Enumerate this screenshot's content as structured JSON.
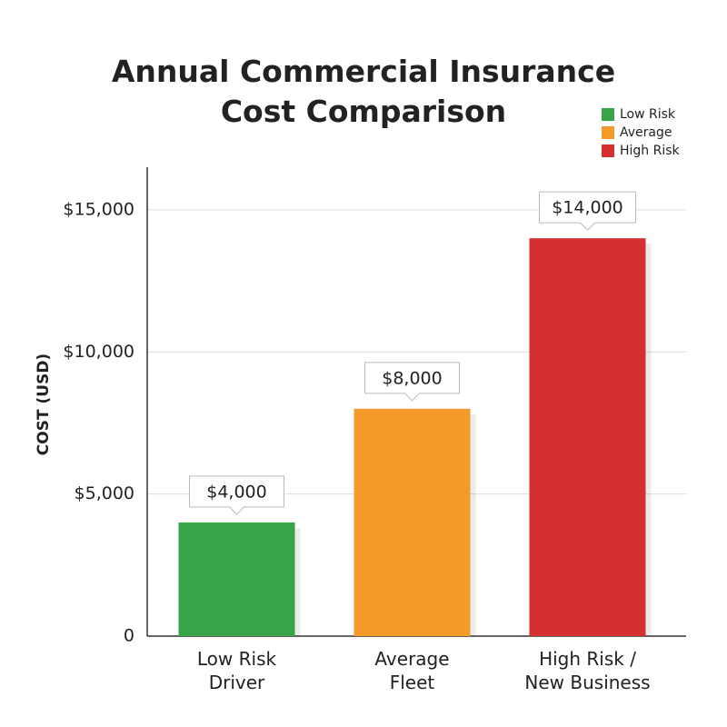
{
  "chart_data": {
    "type": "bar",
    "title": "Annual Commercial Insurance\nCost Comparison",
    "y_label": "COST (USD)",
    "categories": [
      "Low Risk\nDriver",
      "Average\nFleet",
      "High Risk /\nNew Business"
    ],
    "values": [
      4000,
      8000,
      14000
    ],
    "value_labels": [
      "$4,000",
      "$8,000",
      "$14,000"
    ],
    "colors": [
      "#36a447",
      "#f39a2a",
      "#d5302f"
    ],
    "ylim": [
      0,
      16500
    ],
    "yticks": [
      0,
      {
        "value": 5000,
        "label": "$5,000"
      },
      {
        "value": 10000,
        "label": "$10,000"
      },
      {
        "value": 15000,
        "label": "$15,000"
      }
    ],
    "grid": true,
    "legend": {
      "position": "top-right",
      "labels": [
        "Low Risk",
        "Average",
        "High Risk"
      ]
    }
  }
}
